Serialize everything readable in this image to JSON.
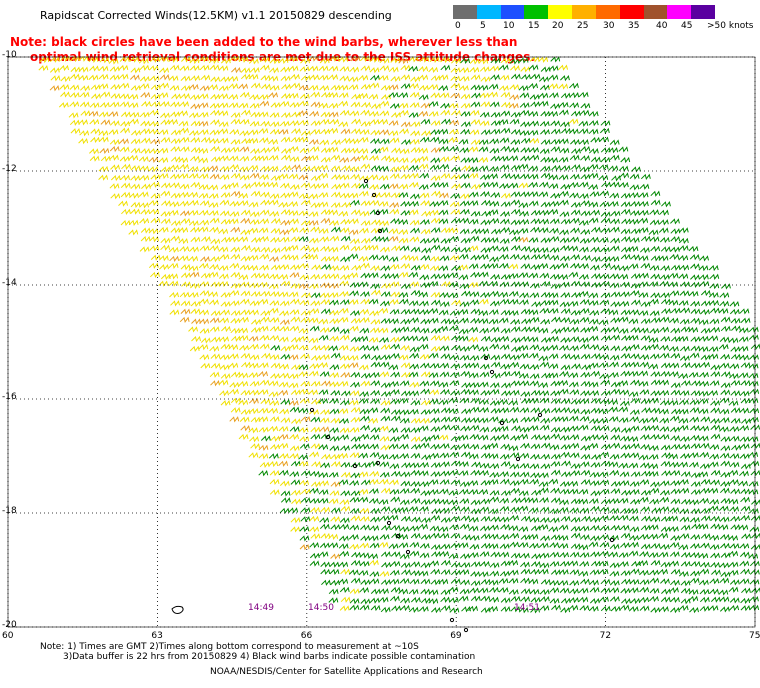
{
  "header": {
    "title": "Rapidscat Corrected Winds(12.5KM) v1.1 20150829 descending",
    "note_line1": "Note: black circles have been added to the wind barbs, wherever less than",
    "note_line2": "optimal wind retrieval conditions are met due to the ISS attitude changes."
  },
  "legend": {
    "labels": [
      "0",
      "5",
      "10",
      "15",
      "20",
      "25",
      "30",
      "35",
      "40",
      "45",
      ">50 knots"
    ],
    "colors": [
      "#6e6e6e",
      "#00b7ff",
      "#1e50ff",
      "#00c000",
      "#ffff00",
      "#ffb000",
      "#ff6a00",
      "#ff0000",
      "#a0522d",
      "#ff00ff",
      "#5a00a0"
    ]
  },
  "axes": {
    "y_ticks": [
      "-10",
      "-12",
      "-14",
      "-16",
      "-18",
      "-20"
    ],
    "x_ticks": [
      "60",
      "63",
      "66",
      "69",
      "72",
      "75"
    ],
    "y_range": [
      -10,
      -20
    ],
    "x_range": [
      60,
      75
    ],
    "grid": "dotted"
  },
  "time_labels": [
    "14:49",
    "14:50",
    "14:51"
  ],
  "footer": {
    "line1": "Note: 1) Times are GMT 2)Times along bottom correspond to measurement at ~10S",
    "line2": "3)Data buffer is 22 hrs from 20150829 4) Black wind barbs indicate possible contamination",
    "line3": "NOAA/NESDIS/Center for Satellite Applications and Research"
  },
  "map": {
    "swath_colors": {
      "yellow": "#f0e000",
      "orange": "#e8a020",
      "green": "#008800",
      "flagged": "#000000"
    }
  }
}
